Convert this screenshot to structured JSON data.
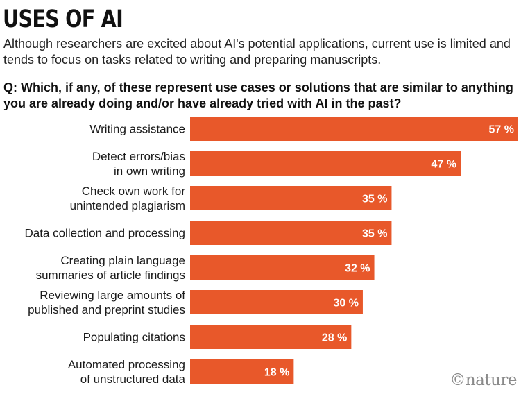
{
  "header": {
    "title": "USES OF AI",
    "subtitle": "Although researchers are excited about AI's potential applications, current use is limited and tends to focus on tasks related to writing and preparing manuscripts.",
    "question": "Q: Which, if any, of these represent use cases or solutions that are similar to anything you are already doing and/or have already tried with AI in the past?"
  },
  "credit": "©nature",
  "colors": {
    "bar": "#E8582A",
    "value_label": "#ffffff",
    "category_label": "#1a1a1a"
  },
  "chart_data": {
    "type": "bar",
    "orientation": "horizontal",
    "categories": [
      [
        "Writing assistance"
      ],
      [
        "Detect errors/bias",
        "in own writing"
      ],
      [
        "Check own work for",
        "unintended plagiarism"
      ],
      [
        "Data collection and processing"
      ],
      [
        "Creating plain language",
        "summaries of article findings"
      ],
      [
        "Reviewing large amounts of",
        "published and preprint studies"
      ],
      [
        "Populating citations"
      ],
      [
        "Automated processing",
        "of unstructured data"
      ]
    ],
    "values": [
      57,
      47,
      35,
      35,
      32,
      30,
      28,
      18
    ],
    "value_labels": [
      "57 %",
      "47 %",
      "35 %",
      "35 %",
      "32 %",
      "30 %",
      "28 %",
      "18 %"
    ],
    "unit": "%",
    "xlim": [
      0,
      57
    ],
    "grid": false,
    "legend": "none"
  }
}
